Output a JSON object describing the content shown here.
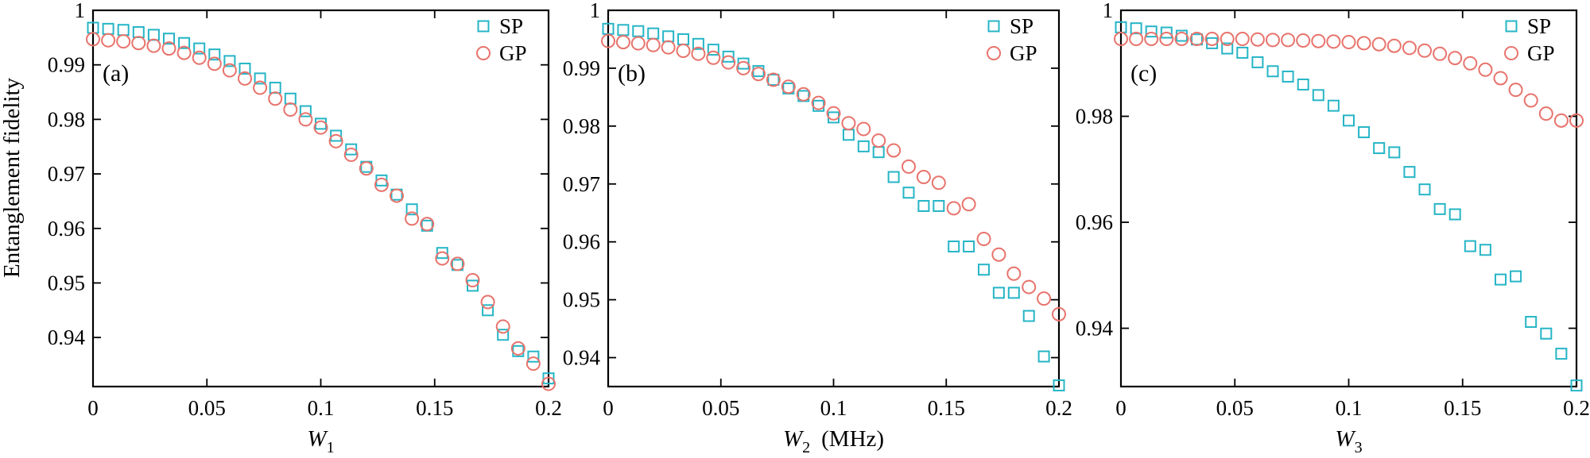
{
  "figure": {
    "ylabel": "Entanglement fidelity",
    "colors": {
      "SP": "#26b5c6",
      "GP": "#e8736c"
    }
  },
  "chart_data": [
    {
      "type": "scatter",
      "panel_label": "(a)",
      "xlabel": {
        "base": "W",
        "sub": "1",
        "unit": ""
      },
      "xlim": [
        0,
        0.2
      ],
      "ylim": [
        0.931,
        1.0
      ],
      "xticks": [
        0,
        0.05,
        0.1,
        0.15,
        0.2
      ],
      "xtick_labels": [
        "0",
        "0.05",
        "0.1",
        "0.15",
        "0.2"
      ],
      "yticks": [
        0.94,
        0.95,
        0.96,
        0.97,
        0.98,
        0.99,
        1.0
      ],
      "ytick_labels": [
        "0.94",
        "0.95",
        "0.96",
        "0.97",
        "0.98",
        "0.99",
        "1"
      ],
      "legend": [
        "SP",
        "GP"
      ],
      "x": [
        0,
        0.00667,
        0.01333,
        0.02,
        0.02667,
        0.03333,
        0.04,
        0.04667,
        0.05333,
        0.06,
        0.06667,
        0.07333,
        0.08,
        0.08667,
        0.09333,
        0.1,
        0.10667,
        0.11333,
        0.12,
        0.12667,
        0.13333,
        0.14,
        0.14667,
        0.15333,
        0.16,
        0.16667,
        0.17333,
        0.18,
        0.18667,
        0.19333,
        0.2
      ],
      "series": [
        {
          "name": "SP",
          "marker": "square",
          "values": [
            0.9968,
            0.9966,
            0.9964,
            0.996,
            0.9955,
            0.9948,
            0.994,
            0.993,
            0.9919,
            0.9907,
            0.9893,
            0.9875,
            0.9858,
            0.9838,
            0.9815,
            0.9792,
            0.977,
            0.9745,
            0.9713,
            0.9688,
            0.9662,
            0.9635,
            0.9605,
            0.9555,
            0.9533,
            0.9495,
            0.945,
            0.9405,
            0.9375,
            0.9365,
            0.9325
          ]
        },
        {
          "name": "GP",
          "marker": "circle",
          "values": [
            0.9947,
            0.9945,
            0.9943,
            0.994,
            0.9935,
            0.993,
            0.9922,
            0.9913,
            0.9902,
            0.989,
            0.9875,
            0.9858,
            0.9838,
            0.9818,
            0.98,
            0.9785,
            0.976,
            0.9735,
            0.971,
            0.968,
            0.966,
            0.9618,
            0.9608,
            0.9545,
            0.9535,
            0.9505,
            0.9465,
            0.942,
            0.938,
            0.9352,
            0.9315
          ]
        }
      ]
    },
    {
      "type": "scatter",
      "panel_label": "(b)",
      "xlabel": {
        "base": "W",
        "sub": "2",
        "unit": "(MHz)"
      },
      "xlim": [
        0,
        0.2
      ],
      "ylim": [
        0.935,
        1.0
      ],
      "xticks": [
        0,
        0.05,
        0.1,
        0.15,
        0.2
      ],
      "xtick_labels": [
        "0",
        "0.05",
        "0.1",
        "0.15",
        "0.2"
      ],
      "yticks": [
        0.94,
        0.95,
        0.96,
        0.97,
        0.98,
        0.99,
        1.0
      ],
      "ytick_labels": [
        "0.94",
        "0.95",
        "0.96",
        "0.97",
        "0.98",
        "0.99",
        "1"
      ],
      "legend": [
        "SP",
        "GP"
      ],
      "x": [
        0,
        0.00667,
        0.01333,
        0.02,
        0.02667,
        0.03333,
        0.04,
        0.04667,
        0.05333,
        0.06,
        0.06667,
        0.07333,
        0.08,
        0.08667,
        0.09333,
        0.1,
        0.10667,
        0.11333,
        0.12,
        0.12667,
        0.13333,
        0.14,
        0.14667,
        0.15333,
        0.16,
        0.16667,
        0.17333,
        0.18,
        0.18667,
        0.19333,
        0.2
      ],
      "series": [
        {
          "name": "SP",
          "marker": "square",
          "values": [
            0.9968,
            0.9966,
            0.9964,
            0.996,
            0.9955,
            0.995,
            0.9942,
            0.9932,
            0.992,
            0.9908,
            0.9895,
            0.988,
            0.9865,
            0.9852,
            0.9835,
            0.9815,
            0.9785,
            0.9765,
            0.9755,
            0.9712,
            0.9685,
            0.9662,
            0.9662,
            0.9592,
            0.9592,
            0.9552,
            0.9512,
            0.9512,
            0.9472,
            0.9402,
            0.9352
          ]
        },
        {
          "name": "GP",
          "marker": "circle",
          "values": [
            0.9947,
            0.9945,
            0.9943,
            0.994,
            0.9936,
            0.993,
            0.9925,
            0.9918,
            0.991,
            0.99,
            0.989,
            0.988,
            0.9868,
            0.9855,
            0.984,
            0.9822,
            0.9805,
            0.9795,
            0.9775,
            0.9758,
            0.973,
            0.9712,
            0.9702,
            0.9658,
            0.9665,
            0.9605,
            0.9578,
            0.9545,
            0.9522,
            0.9502,
            0.9475
          ]
        }
      ]
    },
    {
      "type": "scatter",
      "panel_label": "(c)",
      "xlabel": {
        "base": "W",
        "sub": "3",
        "unit": ""
      },
      "xlim": [
        0,
        0.2
      ],
      "ylim": [
        0.929,
        1.0
      ],
      "xticks": [
        0,
        0.05,
        0.1,
        0.15,
        0.2
      ],
      "xtick_labels": [
        "0",
        "0.05",
        "0.1",
        "0.15",
        "0.2"
      ],
      "yticks": [
        0.94,
        0.96,
        0.98,
        1.0
      ],
      "ytick_labels": [
        "0.94",
        "0.96",
        "0.98",
        "1"
      ],
      "legend": [
        "SP",
        "GP"
      ],
      "x": [
        0,
        0.00667,
        0.01333,
        0.02,
        0.02667,
        0.03333,
        0.04,
        0.04667,
        0.05333,
        0.06,
        0.06667,
        0.07333,
        0.08,
        0.08667,
        0.09333,
        0.1,
        0.10667,
        0.11333,
        0.12,
        0.12667,
        0.13333,
        0.14,
        0.14667,
        0.15333,
        0.16,
        0.16667,
        0.17333,
        0.18,
        0.18667,
        0.19333,
        0.2
      ],
      "series": [
        {
          "name": "SP",
          "marker": "square",
          "values": [
            0.9968,
            0.9966,
            0.996,
            0.9958,
            0.9952,
            0.9945,
            0.9938,
            0.9928,
            0.992,
            0.9902,
            0.9885,
            0.9875,
            0.986,
            0.984,
            0.982,
            0.9792,
            0.977,
            0.974,
            0.9732,
            0.9695,
            0.9662,
            0.9625,
            0.9615,
            0.9555,
            0.9548,
            0.9492,
            0.9498,
            0.9412,
            0.939,
            0.9352,
            0.9292
          ]
        },
        {
          "name": "GP",
          "marker": "circle",
          "values": [
            0.9946,
            0.9946,
            0.9946,
            0.9946,
            0.9946,
            0.9946,
            0.9946,
            0.9946,
            0.9946,
            0.9945,
            0.9944,
            0.9944,
            0.9943,
            0.9942,
            0.9941,
            0.994,
            0.9938,
            0.9936,
            0.9933,
            0.9929,
            0.9924,
            0.9918,
            0.991,
            0.99,
            0.9888,
            0.9872,
            0.985,
            0.983,
            0.9805,
            0.9792,
            0.9792
          ]
        }
      ]
    }
  ]
}
